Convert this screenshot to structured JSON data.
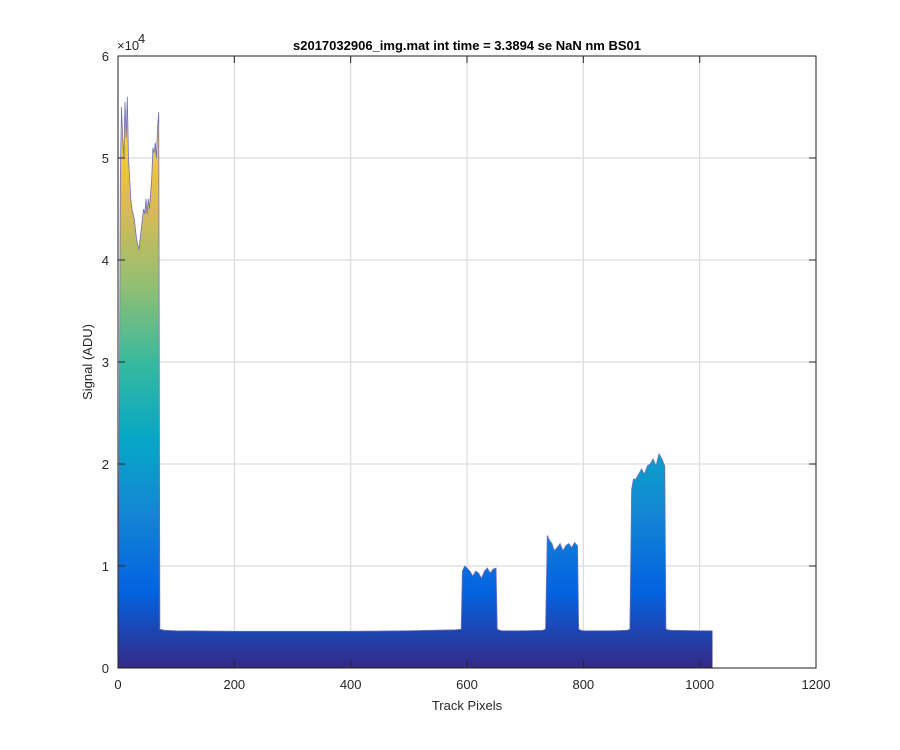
{
  "chart_data": {
    "type": "area",
    "title": "s2017032906_img.mat int time = 3.3894 se  NaN nm BS01",
    "xlabel": "Track Pixels",
    "ylabel": "Signal (ADU)",
    "xlim": [
      0,
      1200
    ],
    "ylim": [
      0,
      60000
    ],
    "xticks": [
      0,
      200,
      400,
      600,
      800,
      1000,
      1200
    ],
    "yticks": [
      0,
      1,
      2,
      3,
      4,
      5,
      6
    ],
    "xtick_labels": [
      "0",
      "200",
      "400",
      "600",
      "800",
      "1000",
      "1200"
    ],
    "ytick_labels": [
      "0",
      "1",
      "2",
      "3",
      "4",
      "5",
      "6"
    ],
    "y_exponent_label": "×10",
    "y_exponent_power": "4",
    "grid": true,
    "colormap": [
      "#352a87",
      "#0363e1",
      "#1485d4",
      "#06a7c6",
      "#38b99e",
      "#92bf73",
      "#d9ba56",
      "#fcce2e",
      "#f9fb0e"
    ],
    "series": [
      {
        "x": [
          0,
          2,
          4,
          6,
          8,
          10,
          12,
          14,
          16,
          18,
          20,
          22,
          24,
          26,
          28,
          30,
          32,
          34,
          36,
          38,
          40,
          42,
          44,
          46,
          48,
          50,
          52,
          54,
          56,
          58,
          60,
          62,
          64,
          66,
          68,
          70,
          72,
          80,
          100,
          200,
          300,
          400,
          500,
          580,
          590,
          592,
          596,
          600,
          605,
          610,
          615,
          620,
          625,
          630,
          635,
          640,
          645,
          650,
          652,
          656,
          660,
          700,
          730,
          735,
          738,
          742,
          746,
          750,
          755,
          760,
          765,
          770,
          775,
          780,
          785,
          790,
          792,
          796,
          800,
          850,
          875,
          880,
          883,
          886,
          890,
          895,
          900,
          905,
          910,
          915,
          920,
          925,
          930,
          935,
          940,
          942,
          945,
          950,
          1000,
          1022
        ],
        "y": [
          3800,
          20000,
          48000,
          55000,
          52000,
          50000,
          55500,
          52000,
          56000,
          50000,
          48000,
          46000,
          45000,
          44500,
          44000,
          43000,
          42000,
          41500,
          41000,
          42000,
          43000,
          44000,
          45000,
          44500,
          46000,
          44500,
          46000,
          45000,
          46500,
          48000,
          51000,
          50500,
          51500,
          50000,
          53000,
          54500,
          3800,
          3700,
          3650,
          3600,
          3600,
          3600,
          3650,
          3750,
          3800,
          9500,
          10000,
          9800,
          9500,
          9000,
          9500,
          9300,
          8800,
          9500,
          9800,
          9300,
          9700,
          9800,
          3800,
          3700,
          3650,
          3650,
          3700,
          3800,
          13000,
          12500,
          12200,
          11500,
          11800,
          12200,
          11500,
          12000,
          12200,
          11800,
          12300,
          12000,
          3800,
          3700,
          3650,
          3650,
          3700,
          3800,
          17500,
          18500,
          18500,
          19000,
          19500,
          19000,
          19800,
          20000,
          20500,
          19800,
          21000,
          20500,
          19800,
          3800,
          3750,
          3700,
          3650,
          3650
        ]
      }
    ]
  }
}
